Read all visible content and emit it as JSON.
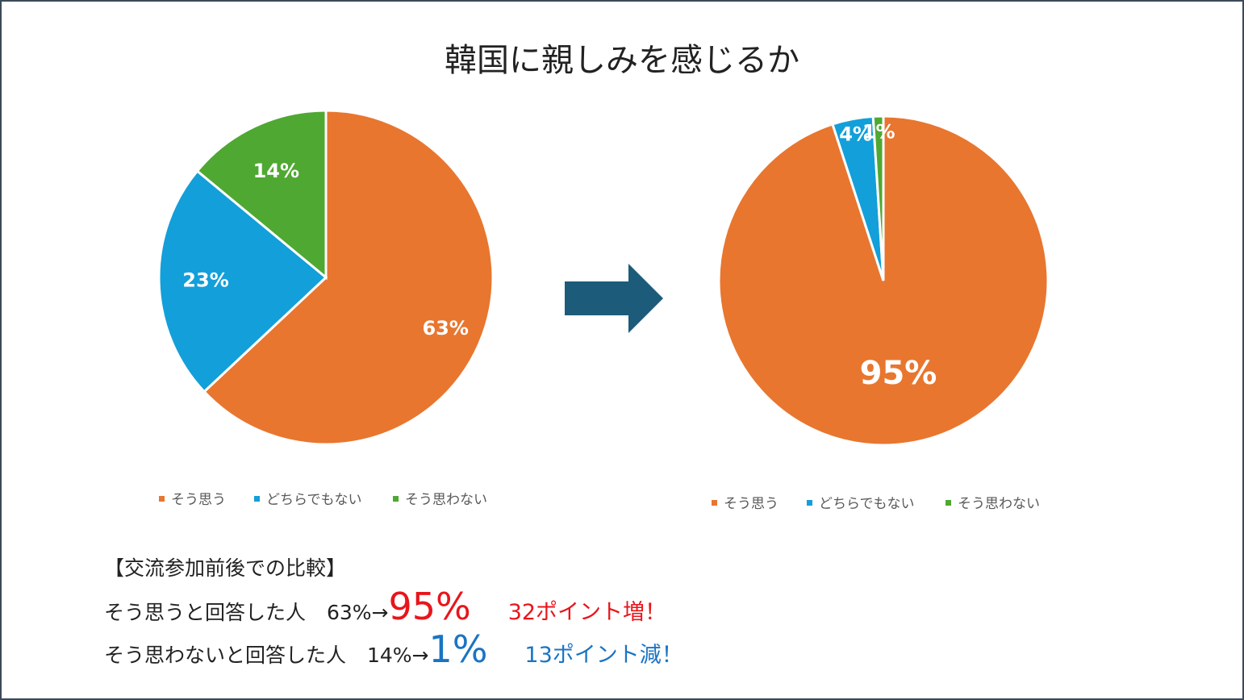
{
  "title": "韓国に親しみを感じるか",
  "colors": {
    "agree": "#E8762F",
    "neutral": "#139FD9",
    "disagree": "#4FA832",
    "arrow": "#1C5C7A",
    "increase": "#E8151B",
    "decrease": "#1A74C4"
  },
  "chart_data": [
    {
      "type": "pie",
      "categories": [
        "そう思う",
        "どちらでもない",
        "そう思わない"
      ],
      "values": [
        63,
        23,
        14
      ],
      "labels": [
        "63%",
        "23%",
        "14%"
      ]
    },
    {
      "type": "pie",
      "categories": [
        "そう思う",
        "どちらでもない",
        "そう思わない"
      ],
      "values": [
        95,
        4,
        1
      ],
      "labels": [
        "95%",
        "4%",
        "1%"
      ]
    }
  ],
  "arrow_icon": "right-arrow-icon",
  "summary": {
    "heading": "【交流参加前後での比較】",
    "rows": [
      {
        "prefix": "そう思うと回答した人",
        "before": "63%→",
        "after": "95%",
        "delta": "32ポイント増！"
      },
      {
        "prefix": "そう思わないと回答した人",
        "before": "14%→",
        "after": "1%",
        "delta": "13ポイント減！"
      }
    ]
  }
}
